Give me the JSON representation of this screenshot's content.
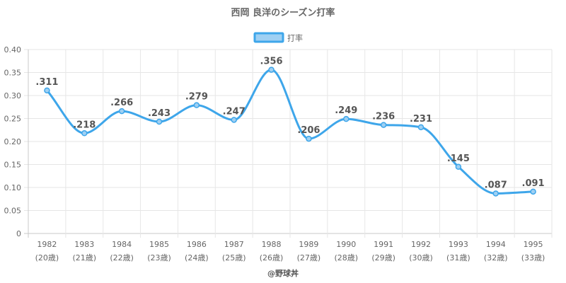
{
  "chart_data": {
    "type": "line",
    "title": "西岡 良洋のシーズン打率",
    "legend": {
      "label": "打率",
      "position": "top"
    },
    "x": [
      "1982",
      "1983",
      "1984",
      "1985",
      "1986",
      "1987",
      "1988",
      "1989",
      "1990",
      "1991",
      "1992",
      "1993",
      "1994",
      "1995"
    ],
    "x_sublabels": [
      "(20歳)",
      "(21歳)",
      "(22歳)",
      "(23歳)",
      "(24歳)",
      "(25歳)",
      "(26歳)",
      "(27歳)",
      "(28歳)",
      "(29歳)",
      "(30歳)",
      "(31歳)",
      "(32歳)",
      "(33歳)"
    ],
    "series": [
      {
        "name": "打率",
        "values": [
          0.311,
          0.218,
          0.266,
          0.243,
          0.279,
          0.247,
          0.356,
          0.206,
          0.249,
          0.236,
          0.231,
          0.145,
          0.087,
          0.091
        ],
        "labels": [
          ".311",
          ".218",
          ".266",
          ".243",
          ".279",
          ".247",
          ".356",
          ".206",
          ".249",
          ".236",
          ".231",
          ".145",
          ".087",
          ".091"
        ],
        "color": "#3ea6ea",
        "fill": "#9fd0f3"
      }
    ],
    "ylim": [
      0,
      0.4
    ],
    "yticks": [
      0,
      0.05,
      0.1,
      0.15,
      0.2,
      0.25,
      0.3,
      0.35,
      0.4
    ],
    "ytick_labels": [
      "0",
      "0.05",
      "0.10",
      "0.15",
      "0.20",
      "0.25",
      "0.30",
      "0.35",
      "0.40"
    ],
    "grid": true,
    "credit": "@野球丼"
  }
}
